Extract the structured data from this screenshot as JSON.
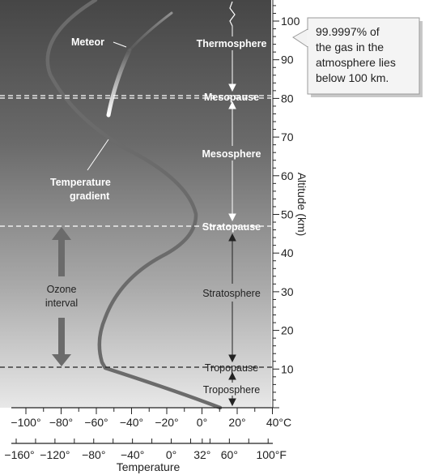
{
  "figure": {
    "layers": {
      "thermosphere": "Thermosphere",
      "mesopause": "Mesopause",
      "mesosphere": "Mesosphere",
      "stratopause": "Stratopause",
      "stratosphere": "Stratosphere",
      "tropopause": "Tropopause",
      "troposphere": "Troposphere"
    },
    "labels": {
      "meteor": "Meteor",
      "gradient_line1": "Temperature",
      "gradient_line2": "gradient",
      "ozone_line1": "Ozone",
      "ozone_line2": "interval"
    },
    "callout": {
      "line1": "99.9997% of",
      "line2": "the gas in the",
      "line3": "atmosphere lies",
      "line4": "below 100 km."
    },
    "altitude_axis": {
      "label": "Altitude (km)",
      "ticks": [
        "10",
        "20",
        "30",
        "40",
        "50",
        "60",
        "70",
        "80",
        "90",
        "100"
      ]
    },
    "celsius_axis": {
      "ticks": [
        "−100°",
        "−80°",
        "−60°",
        "−40°",
        "−20°",
        "0°",
        "20°",
        "40°C"
      ]
    },
    "fahrenheit_axis": {
      "ticks": [
        "−160°",
        "−120°",
        "−80°",
        "−40°",
        "0°",
        "32°",
        "60°",
        "100°F"
      ],
      "label": "Temperature"
    },
    "colors": {
      "panel_top": "#4a4a4a",
      "panel_bottom": "#e6e6e6",
      "curve": "#666666",
      "meteor": "#ffffff"
    }
  }
}
